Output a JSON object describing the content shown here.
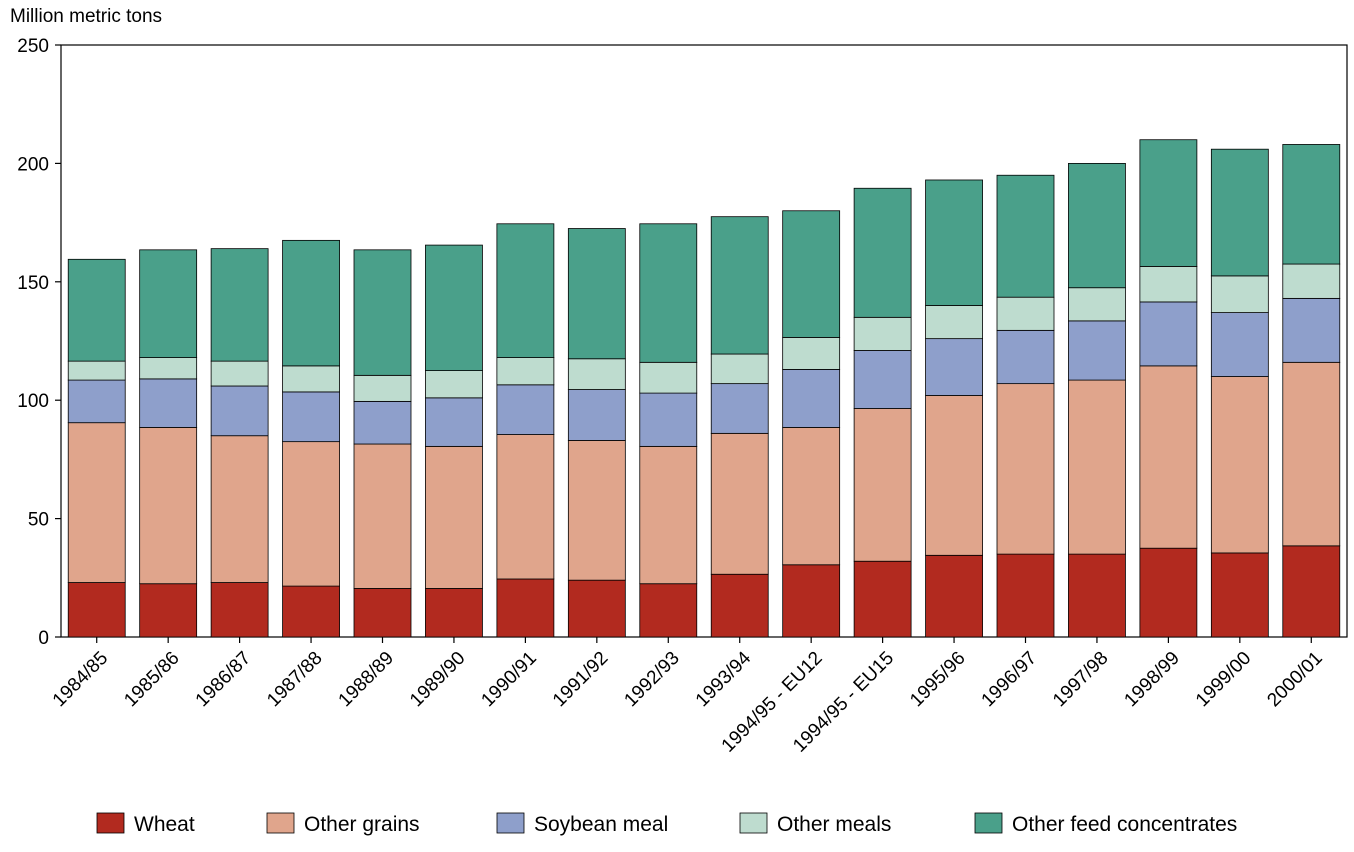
{
  "chart_data": {
    "type": "bar",
    "stacked": true,
    "title": "",
    "xlabel": "",
    "ylabel": "Million metric tons",
    "ylim": [
      0,
      250
    ],
    "yticks": [
      0,
      50,
      100,
      150,
      200,
      250
    ],
    "grid": false,
    "legend_position": "bottom",
    "categories": [
      "1984/85",
      "1985/86",
      "1986/87",
      "1987/88",
      "1988/89",
      "1989/90",
      "1990/91",
      "1991/92",
      "1992/93",
      "1993/94",
      "1994/95 - EU12",
      "1994/95 - EU15",
      "1995/96",
      "1996/97",
      "1997/98",
      "1998/99",
      "1999/00",
      "2000/01"
    ],
    "series": [
      {
        "name": "Wheat",
        "color": "#b22a1f",
        "values": [
          23,
          22.5,
          23,
          21.5,
          20.5,
          20.5,
          24.5,
          24,
          22.5,
          26.5,
          30.5,
          32,
          34.5,
          35,
          35,
          37.5,
          35.5,
          38.5
        ]
      },
      {
        "name": "Other grains",
        "color": "#e0a58c",
        "values": [
          67.5,
          66,
          62,
          61,
          61,
          60,
          61,
          59,
          58,
          59.5,
          58,
          64.5,
          67.5,
          72,
          73.5,
          77,
          74.5,
          77.5
        ]
      },
      {
        "name": "Soybean meal",
        "color": "#8e9fcb",
        "values": [
          18,
          20.5,
          21,
          21,
          18,
          20.5,
          21,
          21.5,
          22.5,
          21,
          24.5,
          24.5,
          24,
          22.5,
          25,
          27,
          27,
          27
        ]
      },
      {
        "name": "Other meals",
        "color": "#bedccf",
        "values": [
          8,
          9,
          10.5,
          11,
          11,
          11.5,
          11.5,
          13,
          13,
          12.5,
          13.5,
          14,
          14,
          14,
          14,
          15,
          15.5,
          14.5
        ]
      },
      {
        "name": "Other feed concentrates",
        "color": "#4aa08a",
        "values": [
          43,
          45.5,
          47.5,
          53,
          53,
          53,
          56.5,
          55,
          58.5,
          58,
          53.5,
          54.5,
          53,
          51.5,
          52.5,
          53.5,
          53.5,
          50.5
        ]
      }
    ]
  }
}
